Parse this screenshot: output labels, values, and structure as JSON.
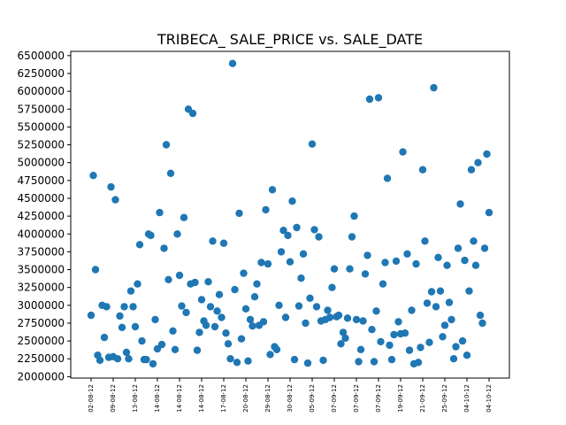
{
  "chart_data": {
    "type": "scatter",
    "title": "TRIBECA_ SALE_PRICE vs. SALE_DATE",
    "xlabel": "",
    "ylabel": "",
    "ylim": [
      1980000,
      6560000
    ],
    "yticks": [
      2000000,
      2250000,
      2500000,
      2750000,
      3000000,
      3250000,
      3500000,
      3750000,
      4000000,
      4250000,
      4500000,
      4750000,
      5000000,
      5250000,
      5500000,
      5750000,
      6000000,
      6250000,
      6500000
    ],
    "xticks": [
      "02-08-12",
      "09-08-12",
      "13-08-12",
      "14-08-12",
      "14-08-12",
      "14-08-12",
      "17-08-12",
      "20-08-12",
      "29-08-12",
      "30-08-12",
      "05-09-12",
      "07-09-12",
      "07-09-12",
      "07-09-12",
      "19-09-12",
      "21-09-12",
      "25-09-12",
      "04-10-12",
      "04-10-12"
    ],
    "point_color": "#1f77b4",
    "grid": false,
    "points": [
      [
        0,
        2860000
      ],
      [
        1,
        4820000
      ],
      [
        2,
        3500000
      ],
      [
        3,
        2300000
      ],
      [
        4,
        2230000
      ],
      [
        5,
        3000000
      ],
      [
        6,
        2550000
      ],
      [
        7,
        2980000
      ],
      [
        8,
        2270000
      ],
      [
        9,
        4660000
      ],
      [
        10,
        2280000
      ],
      [
        11,
        4480000
      ],
      [
        12,
        2250000
      ],
      [
        13,
        2850000
      ],
      [
        14,
        2690000
      ],
      [
        15,
        2980000
      ],
      [
        16,
        2340000
      ],
      [
        17,
        2250000
      ],
      [
        18,
        3200000
      ],
      [
        19,
        2980000
      ],
      [
        20,
        2700000
      ],
      [
        21,
        3300000
      ],
      [
        22,
        3850000
      ],
      [
        23,
        2500000
      ],
      [
        24,
        2240000
      ],
      [
        25,
        2240000
      ],
      [
        26,
        4000000
      ],
      [
        27,
        3980000
      ],
      [
        28,
        2180000
      ],
      [
        29,
        2800000
      ],
      [
        30,
        2390000
      ],
      [
        31,
        4300000
      ],
      [
        32,
        2450000
      ],
      [
        33,
        3800000
      ],
      [
        34,
        5250000
      ],
      [
        35,
        3360000
      ],
      [
        36,
        4850000
      ],
      [
        37,
        2640000
      ],
      [
        38,
        2380000
      ],
      [
        39,
        4000000
      ],
      [
        40,
        3420000
      ],
      [
        41,
        2990000
      ],
      [
        42,
        4230000
      ],
      [
        43,
        2900000
      ],
      [
        44,
        5750000
      ],
      [
        45,
        3300000
      ],
      [
        46,
        5690000
      ],
      [
        47,
        3320000
      ],
      [
        48,
        2370000
      ],
      [
        49,
        2620000
      ],
      [
        50,
        3080000
      ],
      [
        51,
        2780000
      ],
      [
        52,
        2720000
      ],
      [
        53,
        3330000
      ],
      [
        54,
        2980000
      ],
      [
        55,
        3900000
      ],
      [
        56,
        2700000
      ],
      [
        57,
        2920000
      ],
      [
        58,
        3150000
      ],
      [
        59,
        2830000
      ],
      [
        60,
        3870000
      ],
      [
        61,
        2610000
      ],
      [
        62,
        2460000
      ],
      [
        63,
        2250000
      ],
      [
        64,
        6390000
      ],
      [
        65,
        3220000
      ],
      [
        66,
        2200000
      ],
      [
        67,
        4290000
      ],
      [
        68,
        2530000
      ],
      [
        69,
        3450000
      ],
      [
        70,
        2950000
      ],
      [
        71,
        2220000
      ],
      [
        72,
        2800000
      ],
      [
        73,
        2710000
      ],
      [
        74,
        3120000
      ],
      [
        75,
        3300000
      ],
      [
        76,
        2720000
      ],
      [
        77,
        3600000
      ],
      [
        78,
        2770000
      ],
      [
        79,
        4340000
      ],
      [
        80,
        3580000
      ],
      [
        81,
        2310000
      ],
      [
        82,
        4620000
      ],
      [
        83,
        2420000
      ],
      [
        84,
        2380000
      ],
      [
        85,
        3000000
      ],
      [
        86,
        3750000
      ],
      [
        87,
        4050000
      ],
      [
        88,
        2830000
      ],
      [
        89,
        3980000
      ],
      [
        90,
        3610000
      ],
      [
        91,
        4460000
      ],
      [
        92,
        2240000
      ],
      [
        93,
        4090000
      ],
      [
        94,
        2990000
      ],
      [
        95,
        3380000
      ],
      [
        96,
        3720000
      ],
      [
        97,
        2750000
      ],
      [
        98,
        2190000
      ],
      [
        99,
        3100000
      ],
      [
        100,
        5260000
      ],
      [
        101,
        4060000
      ],
      [
        102,
        2980000
      ],
      [
        103,
        3960000
      ],
      [
        104,
        2780000
      ],
      [
        105,
        2230000
      ],
      [
        106,
        2800000
      ],
      [
        107,
        2930000
      ],
      [
        108,
        2830000
      ],
      [
        109,
        3250000
      ],
      [
        110,
        3510000
      ],
      [
        111,
        2840000
      ],
      [
        112,
        2860000
      ],
      [
        113,
        2460000
      ],
      [
        114,
        2620000
      ],
      [
        115,
        2540000
      ],
      [
        116,
        2820000
      ],
      [
        117,
        3510000
      ],
      [
        118,
        3960000
      ],
      [
        119,
        4250000
      ],
      [
        120,
        2800000
      ],
      [
        121,
        2210000
      ],
      [
        122,
        2380000
      ],
      [
        123,
        2780000
      ],
      [
        124,
        3440000
      ],
      [
        125,
        3700000
      ],
      [
        126,
        5890000
      ],
      [
        127,
        2660000
      ],
      [
        128,
        2210000
      ],
      [
        129,
        2920000
      ],
      [
        130,
        5910000
      ],
      [
        131,
        2490000
      ],
      [
        132,
        3300000
      ],
      [
        133,
        3600000
      ],
      [
        134,
        4780000
      ],
      [
        135,
        2440000
      ],
      [
        136,
        2240000
      ],
      [
        137,
        2590000
      ],
      [
        138,
        3620000
      ],
      [
        139,
        2770000
      ],
      [
        140,
        2600000
      ],
      [
        141,
        5150000
      ],
      [
        142,
        2610000
      ],
      [
        143,
        3720000
      ],
      [
        144,
        2370000
      ],
      [
        145,
        2930000
      ],
      [
        146,
        2180000
      ],
      [
        147,
        3580000
      ],
      [
        148,
        2200000
      ],
      [
        149,
        2410000
      ],
      [
        150,
        4900000
      ],
      [
        151,
        3900000
      ],
      [
        152,
        3030000
      ],
      [
        153,
        2480000
      ],
      [
        154,
        3190000
      ],
      [
        155,
        6050000
      ],
      [
        156,
        2980000
      ],
      [
        157,
        3670000
      ],
      [
        158,
        3200000
      ],
      [
        159,
        2560000
      ],
      [
        160,
        2720000
      ],
      [
        161,
        3560000
      ],
      [
        162,
        3040000
      ],
      [
        163,
        2800000
      ],
      [
        164,
        2250000
      ],
      [
        165,
        2420000
      ],
      [
        166,
        3800000
      ],
      [
        167,
        4420000
      ],
      [
        168,
        2500000
      ],
      [
        169,
        3630000
      ],
      [
        170,
        2300000
      ],
      [
        171,
        3200000
      ],
      [
        172,
        4900000
      ],
      [
        173,
        3900000
      ],
      [
        174,
        3560000
      ],
      [
        175,
        5000000
      ],
      [
        176,
        2860000
      ],
      [
        177,
        2750000
      ],
      [
        178,
        3800000
      ],
      [
        179,
        5120000
      ],
      [
        180,
        4300000
      ]
    ]
  }
}
